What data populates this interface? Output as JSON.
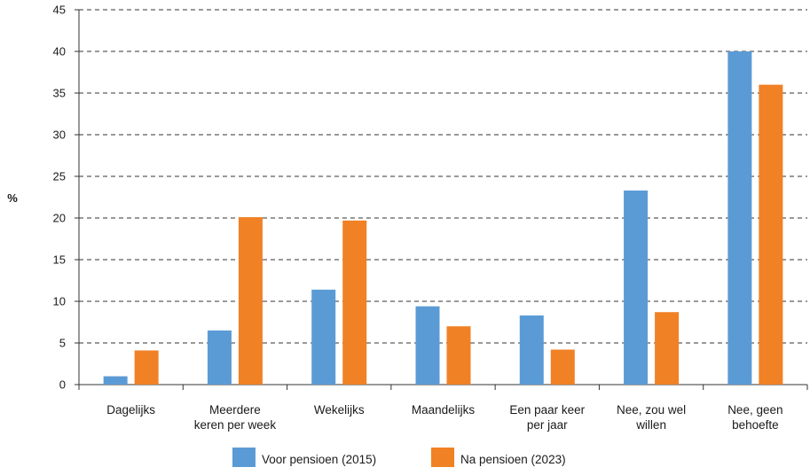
{
  "chart_data": {
    "type": "bar",
    "title": "",
    "xlabel": "",
    "ylabel": "%",
    "ylim": [
      0,
      45
    ],
    "yticks": [
      0,
      5,
      10,
      15,
      20,
      25,
      30,
      35,
      40,
      45
    ],
    "grid": "horizontal dashed",
    "legend_position": "bottom-center",
    "categories": [
      [
        "Dagelijks"
      ],
      [
        "Meerdere",
        "keren per week"
      ],
      [
        "Wekelijks"
      ],
      [
        "Maandelijks"
      ],
      [
        "Een paar keer",
        "per jaar"
      ],
      [
        "Nee, zou wel",
        "willen"
      ],
      [
        "Nee, geen",
        "behoefte"
      ]
    ],
    "series": [
      {
        "name": "Voor pensioen (2015)",
        "color": "#5b9bd5",
        "values": [
          1.0,
          6.5,
          11.4,
          9.4,
          8.3,
          23.3,
          40.0
        ]
      },
      {
        "name": "Na pensioen (2023)",
        "color": "#f08125",
        "values": [
          4.1,
          20.1,
          19.7,
          7.0,
          4.2,
          8.7,
          36.0
        ]
      }
    ]
  }
}
